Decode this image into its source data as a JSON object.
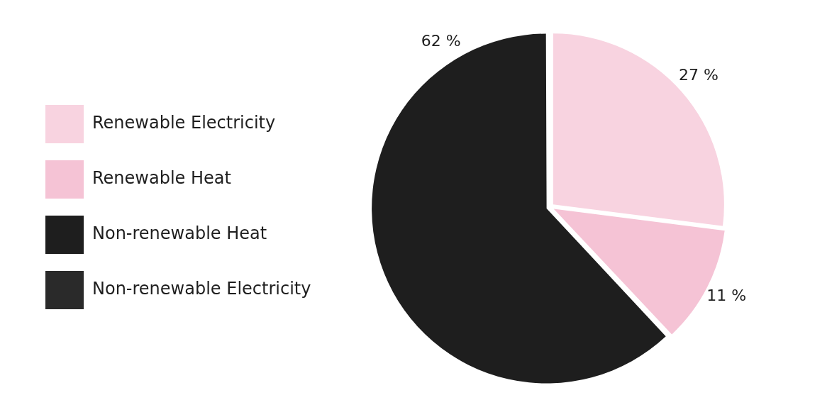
{
  "chart_data": {
    "type": "pie",
    "categories": [
      "Renewable Electricity",
      "Renewable Heat",
      "Non-renewable Heat",
      "Non-renewable Electricity"
    ],
    "values": [
      27,
      11,
      62,
      0
    ],
    "colors": [
      "#f8d3e0",
      "#f5c3d5",
      "#1e1e1e",
      "#2a2a2a"
    ],
    "value_labels": [
      "27 %",
      "11 %",
      "62 %",
      null
    ],
    "legend": "left"
  }
}
